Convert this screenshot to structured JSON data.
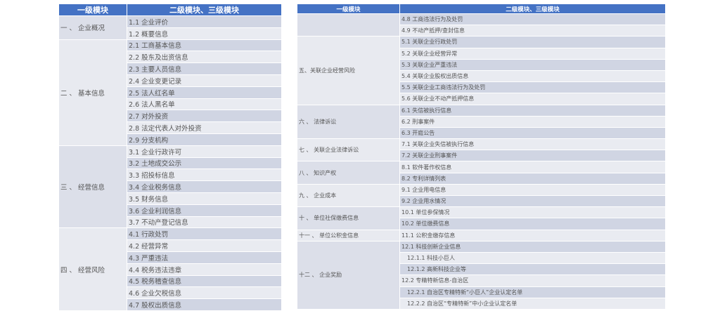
{
  "header": {
    "col1": "一级模块",
    "col2": "二级模块、三级模块"
  },
  "left_table": [
    {
      "module": "一 、 企业概况",
      "items": [
        "1.1 企业评价",
        "1.2 概要信息"
      ]
    },
    {
      "module": "二 、 基本信息",
      "items": [
        "2.1 工商基本信息",
        "2.2 股东及出资信息",
        "2.3 主要人员信息",
        "2.4 企业变更记录",
        "2.5 法人红名单",
        "2.6 法人黑名单",
        "2.7 对外投资",
        "2.8 法定代表人对外投资",
        "2.9 分支机构"
      ]
    },
    {
      "module": "三 、 经营信息",
      "items": [
        "3.1 企业行政许可",
        "3.2 土地成交公示",
        "3.3 招投标信息",
        "3.4 企业税务信息",
        "3.5 财务信息",
        "3.6 企业利润信息",
        "3.7 不动产登记信息"
      ]
    },
    {
      "module": "四 、 经营风险",
      "items": [
        "4.1 行政处罚",
        "4.2 经营异常",
        "4.3 严重违法",
        "4.4 税务违法违章",
        "4.5 税务稽查信息",
        "4.6 企业欠税信息",
        "4.7 股权出质信息"
      ]
    }
  ],
  "right_table": [
    {
      "module": "",
      "items": [
        "4.8 工商违法行为及处罚",
        "4.9 不动产抵押/查封信息"
      ]
    },
    {
      "module": "五、关联企业经营风险",
      "items": [
        "5.1 关联企业行政处罚",
        "5.2 关联企业经营异常",
        "5.3 关联企业严重违法",
        "5.4 关联企业股权出质信息",
        "5.5 关联企业工商违法行为及处罚",
        "5.6 关联企业不动产抵押信息"
      ]
    },
    {
      "module": "六 、 法律诉讼",
      "items": [
        "6.1 失信被执行信息",
        "6.2 刑事案件",
        "6.3 开庭公告"
      ]
    },
    {
      "module": "七 、 关联企业法律诉讼",
      "items": [
        "7.1 关联企业失信被执行信息",
        "7.2 关联企业刑事案件"
      ]
    },
    {
      "module": "八 、 知识产权",
      "items": [
        "8.1 软件著作权信息",
        "8.2 专利详情列表"
      ]
    },
    {
      "module": "九 、 企业成本",
      "items": [
        "9.1 企业用电信息",
        "9.2 企业用水情况"
      ]
    },
    {
      "module": "十 、 单位社保缴费信息",
      "items": [
        "10.1 单位参保情况",
        "10.2 单位缴费信息"
      ]
    },
    {
      "module": "十一 、 单位公积金信息",
      "items": [
        "11.1 公积金缴存信息"
      ]
    },
    {
      "module": "十二 、 企业奖励",
      "items": [
        "12.1 科技创新企业信息",
        "12.1.1 科技小巨人",
        "12.1.2 高新科技企业等",
        "12.2 专精特新信息-自治区",
        "12.2.1 自治区专精特新“小巨人”企业认定名单",
        "12.2.2  自治区“专精特新”中小企业认定名单"
      ]
    }
  ],
  "colors": {
    "header": "#4472c4",
    "row_dark": "#d0d5e3",
    "row_light": "#e9ebf1"
  }
}
